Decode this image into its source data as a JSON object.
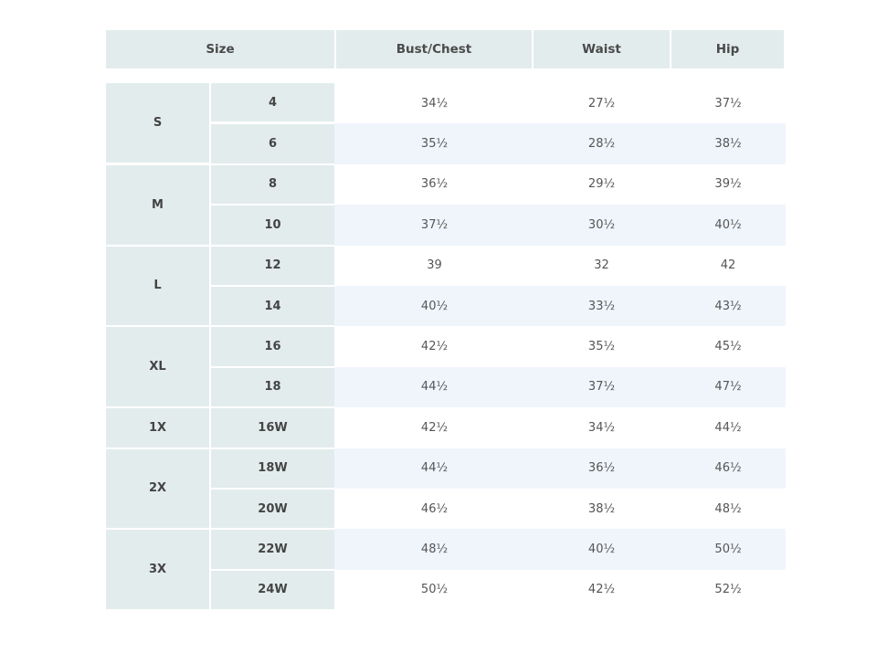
{
  "table": {
    "headers": [
      "Size",
      "Bust/Chest",
      "Waist",
      "Hip"
    ],
    "groups": [
      {
        "label": "S",
        "rows": [
          0,
          1
        ]
      },
      {
        "label": "M",
        "rows": [
          2,
          3
        ]
      },
      {
        "label": "L",
        "rows": [
          4,
          5
        ]
      },
      {
        "label": "XL",
        "rows": [
          6,
          7
        ]
      },
      {
        "label": "1X",
        "rows": [
          8
        ]
      },
      {
        "label": "2X",
        "rows": [
          9,
          10
        ]
      },
      {
        "label": "3X",
        "rows": [
          11,
          12
        ]
      }
    ],
    "rows": [
      {
        "size": "4",
        "bust": "34½",
        "waist": "27½",
        "hip": "37½"
      },
      {
        "size": "6",
        "bust": "35½",
        "waist": "28½",
        "hip": "38½"
      },
      {
        "size": "8",
        "bust": "36½",
        "waist": "29½",
        "hip": "39½"
      },
      {
        "size": "10",
        "bust": "37½",
        "waist": "30½",
        "hip": "40½"
      },
      {
        "size": "12",
        "bust": "39",
        "waist": "32",
        "hip": "42"
      },
      {
        "size": "14",
        "bust": "40½",
        "waist": "33½",
        "hip": "43½"
      },
      {
        "size": "16",
        "bust": "42½",
        "waist": "35½",
        "hip": "45½"
      },
      {
        "size": "18",
        "bust": "44½",
        "waist": "37½",
        "hip": "47½"
      },
      {
        "size": "16W",
        "bust": "42½",
        "waist": "34½",
        "hip": "44½"
      },
      {
        "size": "18W",
        "bust": "44½",
        "waist": "36½",
        "hip": "46½"
      },
      {
        "size": "20W",
        "bust": "46½",
        "waist": "38½",
        "hip": "48½"
      },
      {
        "size": "22W",
        "bust": "48½",
        "waist": "40½",
        "hip": "50½"
      },
      {
        "size": "24W",
        "bust": "50½",
        "waist": "42½",
        "hip": "52½"
      }
    ]
  },
  "colors": {
    "header_bg": "#e3ecec",
    "stripe_bg": "#f0f5fc"
  }
}
